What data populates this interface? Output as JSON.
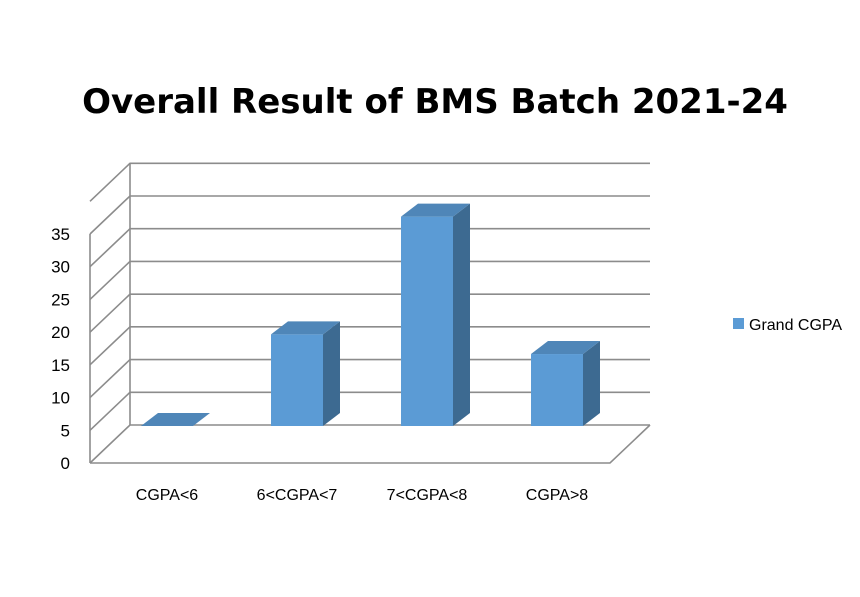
{
  "chart_data": {
    "type": "bar",
    "title": "Overall Result of BMS Batch 2021-24",
    "categories": [
      "CGPA<6",
      "6<CGPA<7",
      "7<CGPA<8",
      "CGPA>8"
    ],
    "series": [
      {
        "name": "Grand CGPA",
        "values": [
          0,
          14,
          32,
          11
        ]
      }
    ],
    "yticks": [
      "0",
      "5",
      "10",
      "15",
      "20",
      "25",
      "30",
      "35"
    ],
    "ylim": [
      0,
      35
    ],
    "xlabel": "",
    "ylabel": "",
    "grid": true,
    "legend_position": "right",
    "style": "3d-column",
    "colors": {
      "bar_front": "#5b9bd5",
      "bar_side": "#3d6a91",
      "bar_top": "#4f86b8",
      "grid": "#8c8c8c"
    }
  }
}
